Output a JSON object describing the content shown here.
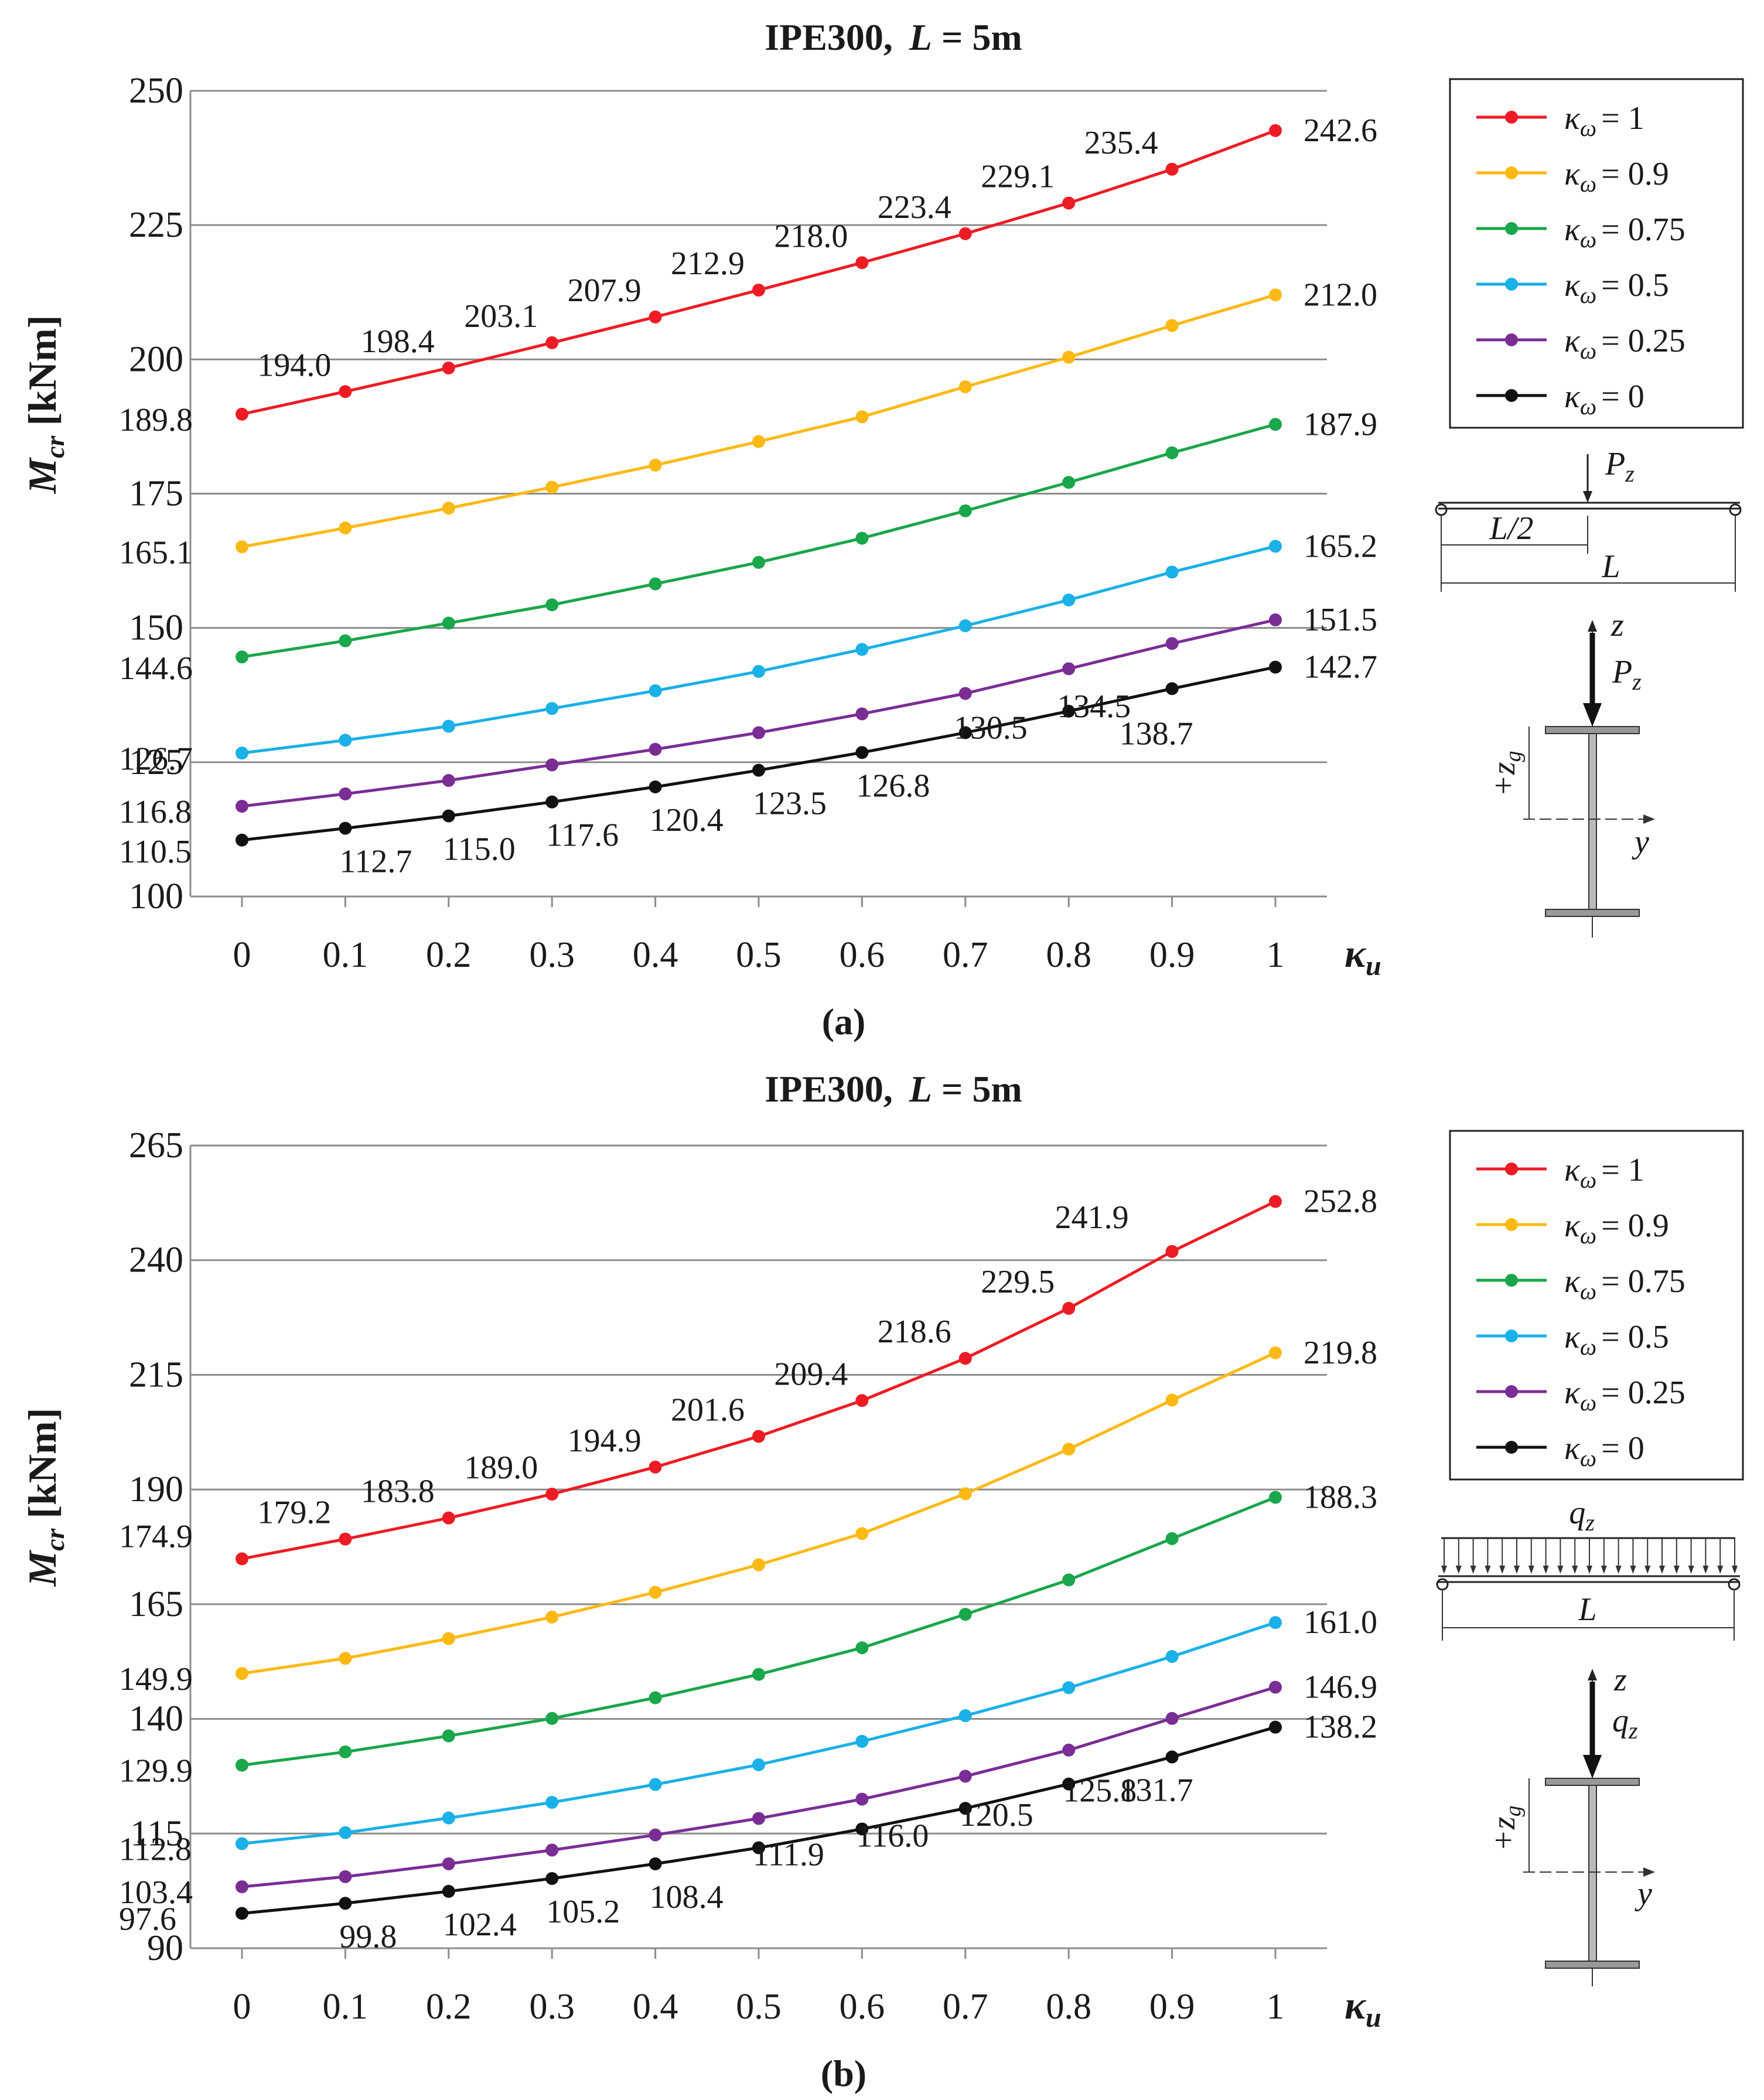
{
  "charts": [
    {
      "title_main": "IPE300,",
      "title_L": "L",
      "title_rest": " = 5m",
      "ylabel_main": "M",
      "ylabel_sub": "cr",
      "ylabel_unit": " [kNm]",
      "xlabel_main": "κ",
      "xlabel_sub": "u",
      "panel_label": "(a)",
      "load_label": "P",
      "load_sub": "z",
      "half_span_label": "L/2",
      "span_label": "L",
      "axis_z": "z",
      "axis_y": "y",
      "zg_plus": "+z",
      "zg_sub": "g"
    },
    {
      "title_main": "IPE300,",
      "title_L": "L",
      "title_rest": " = 5m",
      "ylabel_main": "M",
      "ylabel_sub": "cr",
      "ylabel_unit": " [kNm]",
      "xlabel_main": "κ",
      "xlabel_sub": "u",
      "panel_label": "(b)",
      "load_label": "q",
      "load_sub": "z",
      "span_label": "L",
      "axis_z": "z",
      "axis_y": "y",
      "zg_plus": "+z",
      "zg_sub": "g"
    }
  ],
  "legend_symbol": "κ",
  "legend_sub": "ω",
  "chart_data": [
    {
      "type": "line",
      "title": "IPE300, L = 5m",
      "xlabel": "κu",
      "ylabel": "Mcr [kNm]",
      "x": [
        0,
        0.1,
        0.2,
        0.3,
        0.4,
        0.5,
        0.6,
        0.7,
        0.8,
        0.9,
        1
      ],
      "xticks": [
        "0",
        "0.1",
        "0.2",
        "0.3",
        "0.4",
        "0.5",
        "0.6",
        "0.7",
        "0.8",
        "0.9",
        "1"
      ],
      "ylim": [
        100,
        250
      ],
      "yticks": [
        100,
        125,
        150,
        175,
        200,
        225,
        250
      ],
      "grid": true,
      "legend_position": "right",
      "series": [
        {
          "name": "κω = 1",
          "legend_value": "= 1",
          "color": "#ed1c24",
          "values": [
            189.8,
            194.0,
            198.4,
            203.1,
            207.9,
            212.9,
            218.0,
            223.4,
            229.1,
            235.4,
            242.6
          ]
        },
        {
          "name": "κω = 0.9",
          "legend_value": "= 0.9",
          "color": "#fdb913",
          "values": [
            165.1,
            168.6,
            172.3,
            176.2,
            180.3,
            184.7,
            189.3,
            194.9,
            200.4,
            206.3,
            212.0
          ]
        },
        {
          "name": "κω = 0.75",
          "legend_value": "= 0.75",
          "color": "#1aa64a",
          "values": [
            144.6,
            147.6,
            150.9,
            154.3,
            158.2,
            162.2,
            166.7,
            171.8,
            177.1,
            182.6,
            187.9
          ]
        },
        {
          "name": "κω = 0.5",
          "legend_value": "= 0.5",
          "color": "#1ab0e8",
          "values": [
            126.7,
            129.1,
            131.7,
            135.0,
            138.3,
            141.9,
            146.0,
            150.4,
            155.2,
            160.4,
            165.2
          ]
        },
        {
          "name": "κω = 0.25",
          "legend_value": "= 0.25",
          "color": "#7b2d96",
          "values": [
            116.8,
            119.1,
            121.6,
            124.5,
            127.4,
            130.5,
            134.0,
            137.8,
            142.4,
            147.1,
            151.5
          ]
        },
        {
          "name": "κω = 0",
          "legend_value": "= 0",
          "color": "#111111",
          "values": [
            110.5,
            112.7,
            115.0,
            117.6,
            120.4,
            123.5,
            126.8,
            130.5,
            134.5,
            138.7,
            142.7
          ]
        }
      ],
      "data_labels": [
        {
          "series": 0,
          "text": [
            "189.8",
            "194.0",
            "198.4",
            "203.1",
            "207.9",
            "212.9",
            "218.0",
            "223.4",
            "229.1",
            "235.4",
            "242.6"
          ]
        },
        {
          "series": 1,
          "text": [
            "165.1",
            "212.0"
          ]
        },
        {
          "series": 2,
          "text": [
            "144.6",
            "187.9"
          ]
        },
        {
          "series": 3,
          "text": [
            "126.7",
            "165.2"
          ]
        },
        {
          "series": 4,
          "text": [
            "116.8",
            "151.5"
          ]
        },
        {
          "series": 5,
          "text": [
            "110.5",
            "112.7",
            "115.0",
            "117.6",
            "120.4",
            "123.5",
            "126.8",
            "130.5",
            "134.5",
            "138.7",
            "142.7"
          ]
        }
      ]
    },
    {
      "type": "line",
      "title": "IPE300, L = 5m",
      "xlabel": "κu",
      "ylabel": "Mcr [kNm]",
      "x": [
        0,
        0.1,
        0.2,
        0.3,
        0.4,
        0.5,
        0.6,
        0.7,
        0.8,
        0.9,
        1
      ],
      "xticks": [
        "0",
        "0.1",
        "0.2",
        "0.3",
        "0.4",
        "0.5",
        "0.6",
        "0.7",
        "0.8",
        "0.9",
        "1"
      ],
      "ylim": [
        90,
        265
      ],
      "yticks": [
        90,
        115,
        140,
        165,
        190,
        215,
        240,
        265
      ],
      "grid": true,
      "legend_position": "right",
      "series": [
        {
          "name": "κω = 1",
          "legend_value": "= 1",
          "color": "#ed1c24",
          "values": [
            174.9,
            179.2,
            183.8,
            189.0,
            194.9,
            201.6,
            209.4,
            218.6,
            229.5,
            241.9,
            252.8
          ]
        },
        {
          "name": "κω = 0.9",
          "legend_value": "= 0.9",
          "color": "#fdb913",
          "values": [
            149.9,
            153.2,
            157.5,
            162.2,
            167.6,
            173.6,
            180.4,
            189.1,
            198.8,
            209.5,
            219.8
          ]
        },
        {
          "name": "κω = 0.75",
          "legend_value": "= 0.75",
          "color": "#1aa64a",
          "values": [
            129.9,
            132.8,
            136.3,
            140.1,
            144.6,
            149.7,
            155.5,
            162.8,
            170.3,
            179.3,
            188.3
          ]
        },
        {
          "name": "κω = 0.5",
          "legend_value": "= 0.5",
          "color": "#1ab0e8",
          "values": [
            112.8,
            115.2,
            118.4,
            121.8,
            125.7,
            130.0,
            135.1,
            140.7,
            146.8,
            153.6,
            161.0
          ]
        },
        {
          "name": "κω = 0.25",
          "legend_value": "= 0.25",
          "color": "#7b2d96",
          "values": [
            103.4,
            105.6,
            108.4,
            111.4,
            114.7,
            118.3,
            122.5,
            127.5,
            133.2,
            140.1,
            146.9
          ]
        },
        {
          "name": "κω = 0",
          "legend_value": "= 0",
          "color": "#111111",
          "values": [
            97.6,
            99.8,
            102.4,
            105.2,
            108.4,
            111.9,
            116.0,
            120.5,
            125.8,
            131.7,
            138.2
          ]
        }
      ],
      "data_labels": [
        {
          "series": 0,
          "text": [
            "174.9",
            "179.2",
            "183.8",
            "189.0",
            "194.9",
            "201.6",
            "209.4",
            "218.6",
            "229.5",
            "241.9",
            "252.8"
          ]
        },
        {
          "series": 1,
          "text": [
            "149.9",
            "219.8"
          ]
        },
        {
          "series": 2,
          "text": [
            "129.9",
            "188.3"
          ]
        },
        {
          "series": 3,
          "text": [
            "112.8",
            "161.0"
          ]
        },
        {
          "series": 4,
          "text": [
            "103.4",
            "146.9"
          ]
        },
        {
          "series": 5,
          "text": [
            "97.6",
            "99.8",
            "102.4",
            "105.2",
            "108.4",
            "111.9",
            "116.0",
            "120.5",
            "125.8",
            "131.7",
            "138.2"
          ]
        }
      ]
    }
  ]
}
